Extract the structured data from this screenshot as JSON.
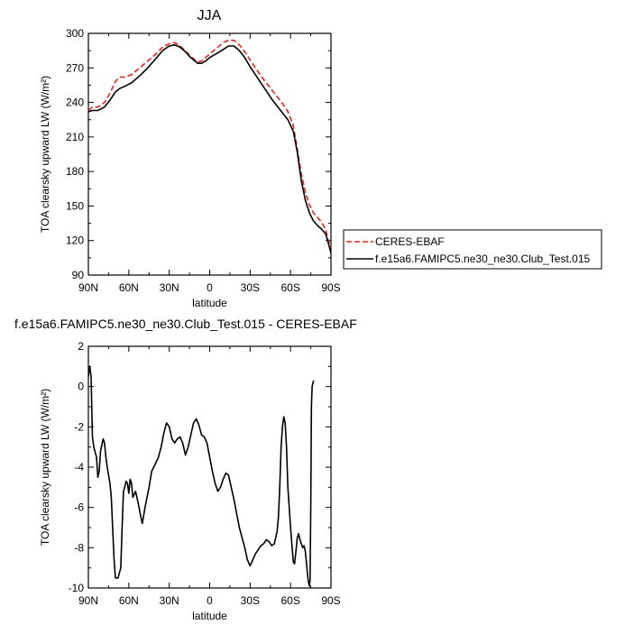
{
  "chart_data": [
    {
      "type": "line",
      "title": "JJA",
      "xlabel": "latitude",
      "ylabel": "TOA clearsky upward LW (W/m²)",
      "xlim": [
        90,
        -90
      ],
      "ylim": [
        90,
        300
      ],
      "xticks": [
        90,
        60,
        30,
        0,
        -30,
        -60,
        -90
      ],
      "xtick_labels": [
        "90N",
        "60N",
        "30N",
        "0",
        "30S",
        "60S",
        "90S"
      ],
      "yticks": [
        90,
        120,
        150,
        180,
        210,
        240,
        270,
        300
      ],
      "ytick_labels": [
        "90",
        "120",
        "150",
        "180",
        "210",
        "240",
        "270",
        "300"
      ],
      "legend_position": "right, outside plot",
      "series": [
        {
          "name": "CERES-EBAF",
          "color": "#e8241c",
          "dash": "dashed",
          "points": [
            [
              90,
              233
            ],
            [
              87,
              236
            ],
            [
              83,
              236
            ],
            [
              78,
              240
            ],
            [
              74,
              248
            ],
            [
              70,
              258
            ],
            [
              67,
              262
            ],
            [
              63,
              262
            ],
            [
              58,
              264
            ],
            [
              52,
              270
            ],
            [
              46,
              276
            ],
            [
              40,
              282
            ],
            [
              35,
              288
            ],
            [
              30,
              291
            ],
            [
              26,
              292
            ],
            [
              22,
              289
            ],
            [
              18,
              285
            ],
            [
              15,
              281
            ],
            [
              12,
              278
            ],
            [
              9,
              275
            ],
            [
              6,
              276
            ],
            [
              3,
              279
            ],
            [
              0,
              282
            ],
            [
              -3,
              285
            ],
            [
              -6,
              288
            ],
            [
              -10,
              292
            ],
            [
              -14,
              294
            ],
            [
              -18,
              294
            ],
            [
              -22,
              290
            ],
            [
              -26,
              284
            ],
            [
              -30,
              277
            ],
            [
              -34,
              270
            ],
            [
              -38,
              263
            ],
            [
              -42,
              257
            ],
            [
              -46,
              251
            ],
            [
              -50,
              245
            ],
            [
              -54,
              239
            ],
            [
              -58,
              232
            ],
            [
              -62,
              220
            ],
            [
              -65,
              200
            ],
            [
              -68,
              178
            ],
            [
              -71,
              162
            ],
            [
              -74,
              151
            ],
            [
              -77,
              144
            ],
            [
              -80,
              140
            ],
            [
              -83,
              136
            ],
            [
              -86,
              130
            ],
            [
              -88,
              120
            ],
            [
              -90,
              114
            ]
          ]
        },
        {
          "name": "f.e15a6.FAMIPC5.ne30_ne30.Club_Test.015",
          "color": "#000000",
          "dash": "solid",
          "points": [
            [
              90,
              232
            ],
            [
              87,
              233
            ],
            [
              83,
              233
            ],
            [
              78,
              236
            ],
            [
              74,
              242
            ],
            [
              70,
              249
            ],
            [
              67,
              252
            ],
            [
              63,
              254
            ],
            [
              58,
              257
            ],
            [
              52,
              263
            ],
            [
              46,
              270
            ],
            [
              40,
              278
            ],
            [
              35,
              285
            ],
            [
              30,
              289
            ],
            [
              26,
              290
            ],
            [
              22,
              288
            ],
            [
              18,
              284
            ],
            [
              15,
              280
            ],
            [
              12,
              277
            ],
            [
              9,
              274
            ],
            [
              6,
              274
            ],
            [
              3,
              276
            ],
            [
              0,
              279
            ],
            [
              -3,
              281
            ],
            [
              -6,
              283
            ],
            [
              -10,
              286
            ],
            [
              -14,
              289
            ],
            [
              -18,
              289
            ],
            [
              -22,
              285
            ],
            [
              -26,
              279
            ],
            [
              -30,
              271
            ],
            [
              -34,
              264
            ],
            [
              -38,
              257
            ],
            [
              -42,
              250
            ],
            [
              -46,
              243
            ],
            [
              -50,
              237
            ],
            [
              -54,
              231
            ],
            [
              -58,
              225
            ],
            [
              -62,
              215
            ],
            [
              -65,
              197
            ],
            [
              -68,
              172
            ],
            [
              -71,
              155
            ],
            [
              -74,
              144
            ],
            [
              -77,
              137
            ],
            [
              -80,
              133
            ],
            [
              -83,
              130
            ],
            [
              -86,
              126
            ],
            [
              -88,
              118
            ],
            [
              -90,
              109
            ]
          ]
        }
      ]
    },
    {
      "type": "line",
      "title": "f.e15a6.FAMIPC5.ne30_ne30.Club_Test.015 - CERES-EBAF",
      "xlabel": "latitude",
      "ylabel": "TOA clearsky upward LW (W/m²)",
      "xlim": [
        90,
        -90
      ],
      "ylim": [
        -10,
        2
      ],
      "xticks": [
        90,
        60,
        30,
        0,
        -30,
        -60,
        -90
      ],
      "xtick_labels": [
        "90N",
        "60N",
        "30N",
        "0",
        "30S",
        "60S",
        "90S"
      ],
      "yticks": [
        -10,
        -8,
        -6,
        -4,
        -2,
        0,
        2
      ],
      "ytick_labels": [
        "-10",
        "-8",
        "-6",
        "-4",
        "-2",
        "0",
        "2"
      ],
      "series": [
        {
          "color": "#000000",
          "dash": "solid",
          "points": [
            [
              90,
              0.5
            ],
            [
              89,
              1.0
            ],
            [
              88,
              0.5
            ],
            [
              87,
              -2.5
            ],
            [
              86,
              -3.0
            ],
            [
              84,
              -3.5
            ],
            [
              83,
              -4.5
            ],
            [
              82,
              -4.2
            ],
            [
              81,
              -3.2
            ],
            [
              79,
              -2.6
            ],
            [
              78,
              -2.8
            ],
            [
              77,
              -3.5
            ],
            [
              76,
              -4.0
            ],
            [
              74,
              -4.8
            ],
            [
              73,
              -5.5
            ],
            [
              72,
              -7.0
            ],
            [
              71,
              -8.5
            ],
            [
              70,
              -9.5
            ],
            [
              68,
              -9.5
            ],
            [
              66,
              -9.0
            ],
            [
              65,
              -7.0
            ],
            [
              64,
              -5.2
            ],
            [
              63,
              -5.0
            ],
            [
              62,
              -4.7
            ],
            [
              61,
              -4.8
            ],
            [
              60,
              -5.3
            ],
            [
              59,
              -4.6
            ],
            [
              58,
              -4.8
            ],
            [
              57,
              -5.5
            ],
            [
              55,
              -5.2
            ],
            [
              53,
              -5.8
            ],
            [
              51,
              -6.5
            ],
            [
              50,
              -6.8
            ],
            [
              48,
              -6.0
            ],
            [
              45,
              -5.0
            ],
            [
              43,
              -4.2
            ],
            [
              40,
              -3.8
            ],
            [
              38,
              -3.5
            ],
            [
              36,
              -3.0
            ],
            [
              34,
              -2.3
            ],
            [
              32,
              -1.8
            ],
            [
              30,
              -2.0
            ],
            [
              28,
              -2.6
            ],
            [
              26,
              -2.8
            ],
            [
              24,
              -2.6
            ],
            [
              22,
              -2.5
            ],
            [
              20,
              -2.8
            ],
            [
              18,
              -3.4
            ],
            [
              16,
              -3.0
            ],
            [
              14,
              -2.4
            ],
            [
              12,
              -1.8
            ],
            [
              10,
              -1.6
            ],
            [
              8,
              -1.9
            ],
            [
              6,
              -2.4
            ],
            [
              4,
              -2.5
            ],
            [
              2,
              -2.8
            ],
            [
              0,
              -3.5
            ],
            [
              -2,
              -4.2
            ],
            [
              -4,
              -4.8
            ],
            [
              -6,
              -5.2
            ],
            [
              -8,
              -5.0
            ],
            [
              -10,
              -4.6
            ],
            [
              -12,
              -4.3
            ],
            [
              -14,
              -4.4
            ],
            [
              -16,
              -5.0
            ],
            [
              -18,
              -5.6
            ],
            [
              -20,
              -6.3
            ],
            [
              -22,
              -7.0
            ],
            [
              -24,
              -7.5
            ],
            [
              -26,
              -8.0
            ],
            [
              -28,
              -8.6
            ],
            [
              -30,
              -8.9
            ],
            [
              -32,
              -8.6
            ],
            [
              -34,
              -8.3
            ],
            [
              -36,
              -8.1
            ],
            [
              -38,
              -7.9
            ],
            [
              -40,
              -7.8
            ],
            [
              -42,
              -7.6
            ],
            [
              -44,
              -7.7
            ],
            [
              -46,
              -7.9
            ],
            [
              -48,
              -7.8
            ],
            [
              -50,
              -7.2
            ],
            [
              -51,
              -6.5
            ],
            [
              -52,
              -5.0
            ],
            [
              -53,
              -3.0
            ],
            [
              -54,
              -2.0
            ],
            [
              -55,
              -1.5
            ],
            [
              -56,
              -1.8
            ],
            [
              -57,
              -3.0
            ],
            [
              -58,
              -5.0
            ],
            [
              -60,
              -7.0
            ],
            [
              -62,
              -8.7
            ],
            [
              -63,
              -8.8
            ],
            [
              -64,
              -8.2
            ],
            [
              -65,
              -7.5
            ],
            [
              -66,
              -7.3
            ],
            [
              -67,
              -7.6
            ],
            [
              -68,
              -7.8
            ],
            [
              -69,
              -8.0
            ],
            [
              -70,
              -7.9
            ],
            [
              -71,
              -8.2
            ],
            [
              -72,
              -8.9
            ],
            [
              -73,
              -9.6
            ],
            [
              -74,
              -9.9
            ],
            [
              -74.5,
              -9.6
            ],
            [
              -75,
              -6.0
            ],
            [
              -75.5,
              -1.0
            ],
            [
              -76,
              0.0
            ],
            [
              -77,
              0.3
            ]
          ]
        }
      ]
    }
  ]
}
